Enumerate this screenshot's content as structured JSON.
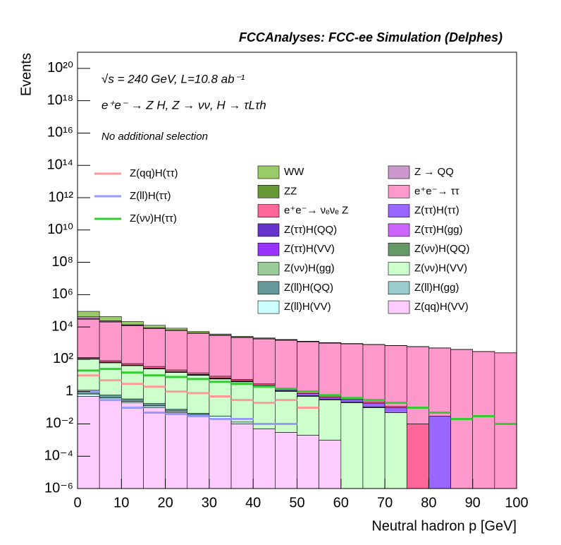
{
  "chart_data": {
    "type": "stacked_histogram",
    "title": "FCCAnalyses: FCC-ee Simulation (Delphes)",
    "annotations": [
      "√s = 240 GeV, L=10.8 ab⁻¹",
      "e⁺e⁻ → Z H, Z → νν, H → τLτh",
      "No additional selection"
    ],
    "x_label": "Neutral hadron p [GeV]",
    "y_label": "Events",
    "log_y": true,
    "xlim": [
      0,
      100
    ],
    "xticks": [
      0,
      10,
      20,
      30,
      40,
      50,
      60,
      70,
      80,
      90,
      100
    ],
    "ylim": [
      1e-06,
      1e+21
    ],
    "yticks": [
      {
        "value": 1e-06,
        "label": "10⁻⁶"
      },
      {
        "value": 0.0001,
        "label": "10⁻⁴"
      },
      {
        "value": 0.01,
        "label": "10⁻²"
      },
      1,
      {
        "value": 100,
        "label": "10²"
      },
      {
        "value": 10000.0,
        "label": "10⁴"
      },
      {
        "value": 1000000.0,
        "label": "10⁶"
      },
      {
        "value": 100000000.0,
        "label": "10⁸"
      },
      {
        "value": 10000000000.0,
        "label": "10¹⁰"
      },
      {
        "value": 1000000000000.0,
        "label": "10¹²"
      },
      {
        "value": 100000000000000.0,
        "label": "10¹⁴"
      },
      {
        "value": 1e+16,
        "label": "10¹⁶"
      },
      {
        "value": 1e+18,
        "label": "10¹⁸"
      },
      {
        "value": 1e+20,
        "label": "10²⁰"
      }
    ],
    "bins": [
      0,
      5,
      10,
      15,
      20,
      25,
      30,
      35,
      40,
      45,
      50,
      55,
      60,
      65,
      70,
      75,
      80,
      85,
      90,
      95,
      100
    ],
    "series": [
      {
        "name": "WW",
        "color": "#99cc66",
        "values": [
          50000,
          20000,
          8000,
          4000,
          2000,
          1000,
          500,
          300,
          200,
          120,
          80,
          50,
          30,
          20,
          10,
          8,
          5,
          3,
          2,
          1
        ]
      },
      {
        "name": "Z → QQ",
        "color": "#cc99cc",
        "values": [
          10000,
          3000,
          1000,
          300,
          150,
          80,
          50,
          30,
          20,
          10,
          5,
          3,
          2,
          1,
          0.5,
          0.3,
          0,
          0,
          0,
          0
        ]
      },
      {
        "name": "ZZ",
        "color": "#669933",
        "values": [
          2000,
          800,
          500,
          300,
          200,
          150,
          100,
          80,
          60,
          50,
          30,
          20,
          10,
          5,
          3,
          2,
          1,
          0.5,
          0.3,
          0.2
        ]
      },
      {
        "name": "e⁺e⁻→ ττ",
        "color": "#ff99cc",
        "values": [
          30000,
          20000,
          12000,
          8000,
          6000,
          4000,
          3000,
          2200,
          1800,
          1500,
          1200,
          1000,
          900,
          800,
          700,
          600,
          500,
          400,
          300,
          250
        ]
      },
      {
        "name": "e⁺e⁻→ νₑνₑ Z",
        "color": "#ff6699",
        "values": [
          20,
          15,
          10,
          8,
          5,
          3,
          2,
          1,
          0.5,
          0.3,
          0.2,
          0.1,
          0.05,
          0.03,
          0.02,
          0.01,
          0,
          0,
          0,
          0
        ]
      },
      {
        "name": "Z(ττ)H(ττ)",
        "color": "#9966ff",
        "values": [
          2,
          1.5,
          1,
          0.8,
          0.6,
          0.5,
          0.4,
          0.3,
          0.3,
          0.2,
          0.2,
          0.1,
          0.1,
          0.08,
          0.05,
          0,
          0.03,
          0,
          0,
          0
        ]
      },
      {
        "name": "Z(ττ)H(QQ)",
        "color": "#6633cc",
        "values": [
          0.3,
          0.2,
          0.1,
          0.05,
          0.02,
          0.01,
          0.005,
          0.003,
          0.002,
          0.001,
          0,
          0,
          0,
          0,
          0,
          0,
          0,
          0,
          0,
          0
        ]
      },
      {
        "name": "Z(ττ)H(gg)",
        "color": "#cc66ff",
        "values": [
          0.2,
          0.1,
          0.05,
          0.02,
          0.01,
          0.005,
          0,
          0.002,
          0,
          0,
          0,
          0,
          0,
          0,
          0,
          0,
          0,
          0,
          0,
          0
        ]
      },
      {
        "name": "Z(ττ)H(VV)",
        "color": "#9933ff",
        "values": [
          0.3,
          0.2,
          0.1,
          0.06,
          0.04,
          0.02,
          0.01,
          0.005,
          0.003,
          0,
          0,
          0,
          0,
          0,
          0,
          0,
          0,
          0,
          0,
          0
        ]
      },
      {
        "name": "Z(νν)H(QQ)",
        "color": "#669966",
        "values": [
          5,
          3,
          2,
          1.5,
          1,
          0.8,
          0.5,
          0.3,
          0.2,
          0.1,
          0.05,
          0.03,
          0.02,
          0.01,
          0,
          0,
          0,
          0,
          0,
          0
        ]
      },
      {
        "name": "Z(νν)H(gg)",
        "color": "#99cc99",
        "values": [
          0.5,
          0.3,
          0.2,
          0.1,
          0.05,
          0.02,
          0.01,
          0,
          0,
          0,
          0,
          0,
          0,
          0,
          0,
          0,
          0,
          0,
          0,
          0
        ]
      },
      {
        "name": "Z(νν)H(VV)",
        "color": "#ccffcc",
        "values": [
          100,
          60,
          40,
          25,
          15,
          10,
          6,
          4,
          2,
          1,
          0.5,
          0.3,
          0.2,
          0.1,
          0.05,
          0,
          0,
          0,
          0,
          0
        ]
      },
      {
        "name": "Z(ll)H(QQ)",
        "color": "#669999",
        "values": [
          0.5,
          0.2,
          0.1,
          0.05,
          0.02,
          0.01,
          0,
          0,
          0,
          0,
          0,
          0,
          0,
          0,
          0,
          0,
          0,
          0,
          0,
          0
        ]
      },
      {
        "name": "Z(ll)H(gg)",
        "color": "#99cccc",
        "values": [
          0.01,
          0.005,
          0.002,
          0.001,
          0,
          0,
          0,
          0,
          0,
          0,
          0,
          0,
          0,
          0,
          0,
          0,
          0,
          0,
          0,
          0
        ]
      },
      {
        "name": "Z(ll)H(VV)",
        "color": "#ccffff",
        "values": [
          0.2,
          0.1,
          0.05,
          0.03,
          0.01,
          0.005,
          0.01,
          0.003,
          0,
          0,
          0,
          0,
          0,
          0,
          0,
          0,
          0,
          0,
          0,
          0
        ]
      },
      {
        "name": "Z(qq)H(VV)",
        "color": "#ffccff",
        "values": [
          0.5,
          0.3,
          0.2,
          0.1,
          0.05,
          0.03,
          0.02,
          0.01,
          0.005,
          0.003,
          0.002,
          0.001,
          0,
          0,
          0,
          0,
          0,
          0,
          0,
          0
        ]
      }
    ],
    "overlay_series": [
      {
        "name": "Z(qq)H(ττ)",
        "color": "#ff9999",
        "values": [
          10,
          5,
          3,
          2,
          1,
          0.8,
          0.5,
          0.3,
          0.2,
          0.3,
          0.1,
          0,
          0,
          0,
          0,
          0,
          0,
          0,
          0,
          0
        ]
      },
      {
        "name": "Z(ll)H(ττ)",
        "color": "#9999ff",
        "values": [
          1,
          0.3,
          0.1,
          0.05,
          0.04,
          0.03,
          0.02,
          0.02,
          0.01,
          0.01,
          0,
          0,
          0,
          0,
          0,
          0,
          0,
          0,
          0,
          0
        ]
      },
      {
        "name": "Z(νν)H(ττ)",
        "color": "#33cc33",
        "values": [
          20,
          25,
          15,
          10,
          8,
          6,
          4,
          3,
          2,
          1.5,
          1,
          0.6,
          0.4,
          0.3,
          0.2,
          0.1,
          0.05,
          0.02,
          0.03,
          0.01
        ]
      }
    ]
  }
}
